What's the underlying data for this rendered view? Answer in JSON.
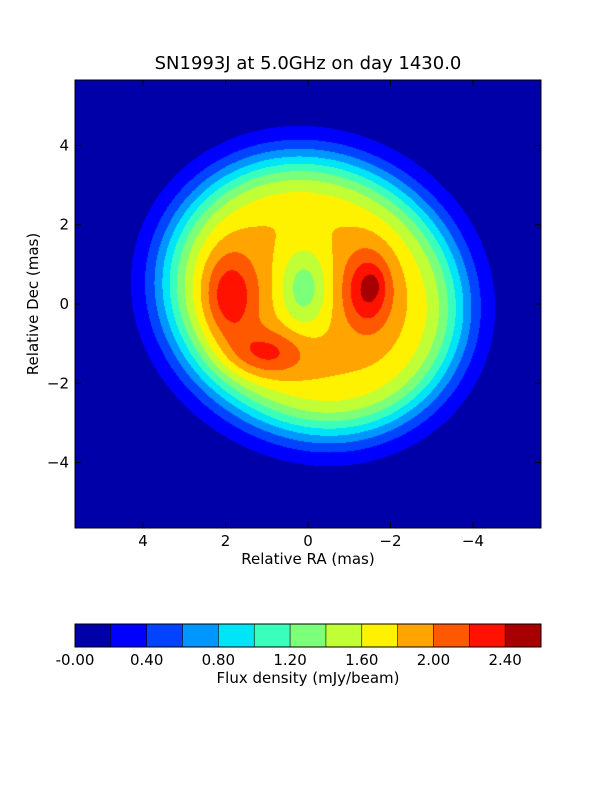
{
  "chart_data": {
    "type": "heatmap",
    "subtype": "filled-contour",
    "title": "SN1993J at 5.0GHz on day 1430.0",
    "xlabel": "Relative RA (mas)",
    "ylabel": "Relative Dec (mas)",
    "xlim": [
      5.65,
      -5.65
    ],
    "ylim": [
      -5.65,
      5.65
    ],
    "x_ticks": [
      4,
      2,
      0,
      -2,
      -4
    ],
    "x_tick_labels": [
      "4",
      "2",
      "0",
      "−2",
      "−4"
    ],
    "y_ticks": [
      4,
      2,
      0,
      -2,
      -4
    ],
    "y_tick_labels": [
      "4",
      "2",
      "0",
      "−2",
      "−4"
    ],
    "grid": false,
    "colorbar": {
      "label": "Flux density (mJy/beam)",
      "levels": [
        -0.0,
        0.2,
        0.4,
        0.6,
        0.8,
        1.0,
        1.2,
        1.4,
        1.6,
        1.8,
        2.0,
        2.2,
        2.4,
        2.6
      ],
      "tick_values": [
        0.0,
        0.4,
        0.8,
        1.2,
        1.6,
        2.0,
        2.4
      ],
      "tick_labels": [
        "-0.00",
        "0.40",
        "0.80",
        "1.20",
        "1.60",
        "2.00",
        "2.40"
      ],
      "colors": [
        "#0000a8",
        "#0000ff",
        "#0044ff",
        "#0096ff",
        "#00e4f8",
        "#3affbc",
        "#7cff79",
        "#c0ff36",
        "#fff200",
        "#ffa400",
        "#ff5900",
        "#ff1300",
        "#a80000"
      ]
    },
    "features": [
      {
        "name": "outer shell",
        "ra_extent": [
          -3.8,
          3.9
        ],
        "dec_extent": [
          -3.6,
          3.75
        ],
        "peak_flux": 1.8
      },
      {
        "name": "left lobe",
        "ra": 1.8,
        "dec": -0.5,
        "peak_flux": 2.3
      },
      {
        "name": "right lobe",
        "ra": -1.4,
        "dec": 0.4,
        "peak_flux": 2.3
      },
      {
        "name": "right lobe peak",
        "ra": -1.6,
        "dec": 0.5,
        "peak_flux": 2.45
      },
      {
        "name": "central depression",
        "ra": 0.1,
        "dec": 0.4,
        "min_flux": 1.5
      }
    ]
  }
}
